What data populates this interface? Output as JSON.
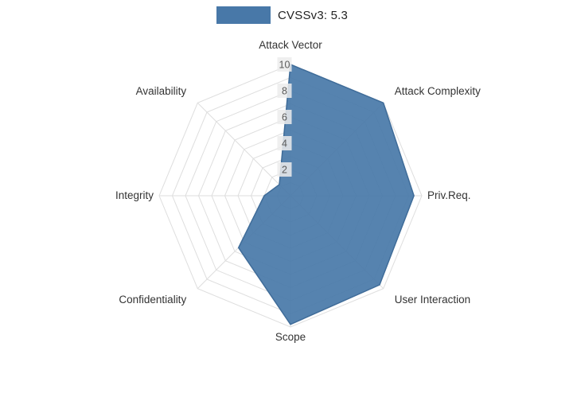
{
  "legend": {
    "label": "CVSSv3: 5.3",
    "swatch_color": "#4878a8"
  },
  "chart_data": {
    "type": "radar",
    "title": "CVSSv3: 5.3",
    "categories": [
      "Attack Vector",
      "Attack Complexity",
      "Priv.Req.",
      "User Interaction",
      "Scope",
      "Confidentiality",
      "Integrity",
      "Availability"
    ],
    "series": [
      {
        "name": "CVSSv3: 5.3",
        "values": [
          10,
          10,
          9.4,
          9.6,
          9.8,
          5.6,
          2.0,
          1.2
        ]
      }
    ],
    "radial_ticks": [
      2,
      4,
      6,
      8,
      10
    ],
    "rlim": [
      0,
      10
    ],
    "grid": true,
    "legend_position": "top-center",
    "colors": {
      "fill": "#4878a8",
      "stroke": "#3f6c99",
      "grid": "#dedede",
      "tick_text": "#5a5a5a",
      "tick_bg": "#ececec",
      "label": "#333333"
    }
  }
}
